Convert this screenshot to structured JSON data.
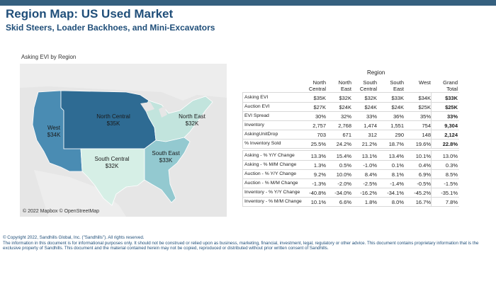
{
  "header": {
    "title": "Region Map: US Used Market",
    "subtitle": "Skid Steers, Loader Backhoes, and Mini-Excavators"
  },
  "map": {
    "title": "Asking EVI by Region",
    "credit": "© 2022 Mapbox © OpenStreetMap",
    "regions": [
      {
        "name": "West",
        "value": "$34K",
        "color": "#4a8cb3"
      },
      {
        "name": "North Central",
        "value": "$35K",
        "color": "#2e6b93"
      },
      {
        "name": "North East",
        "value": "$32K",
        "color": "#c2e4dd"
      },
      {
        "name": "South Central",
        "value": "$32K",
        "color": "#d6efe6"
      },
      {
        "name": "South East",
        "value": "$33K",
        "color": "#93c9d0"
      }
    ]
  },
  "table": {
    "region_header": "Region",
    "columns": [
      [
        "North",
        "Central"
      ],
      [
        "North",
        "East"
      ],
      [
        "South",
        "Central"
      ],
      [
        "South",
        "East"
      ],
      [
        "",
        "West"
      ],
      [
        "Grand",
        "Total"
      ]
    ],
    "rows_top": [
      {
        "label": "Asking EVI",
        "values": [
          "$35K",
          "$32K",
          "$32K",
          "$33K",
          "$34K",
          "$33K"
        ]
      },
      {
        "label": "Auction EVI",
        "values": [
          "$27K",
          "$24K",
          "$24K",
          "$24K",
          "$25K",
          "$25K"
        ]
      },
      {
        "label": "EVI Spread",
        "values": [
          "30%",
          "32%",
          "33%",
          "36%",
          "35%",
          "33%"
        ]
      },
      {
        "label": "Inventory",
        "values": [
          "2,757",
          "2,768",
          "1,474",
          "1,551",
          "754",
          "9,304"
        ]
      },
      {
        "label": "AskingUnitDrop",
        "values": [
          "703",
          "671",
          "312",
          "290",
          "148",
          "2,124"
        ]
      },
      {
        "label": "% Inventory Sold",
        "values": [
          "25.5%",
          "24.2%",
          "21.2%",
          "18.7%",
          "19.6%",
          "22.8%"
        ]
      }
    ],
    "rows_bottom": [
      {
        "label": "Asking - % Y/Y Change",
        "values": [
          "13.3%",
          "15.4%",
          "13.1%",
          "13.4%",
          "10.1%",
          "13.0%"
        ]
      },
      {
        "label": "Asking - % M/M Change",
        "values": [
          "1.3%",
          "0.5%",
          "-1.0%",
          "0.1%",
          "0.4%",
          "0.3%"
        ]
      },
      {
        "label": "Auction - % Y/Y Change",
        "values": [
          "9.2%",
          "10.0%",
          "8.4%",
          "8.1%",
          "6.9%",
          "8.5%"
        ]
      },
      {
        "label": "Auction - % M/M Change",
        "values": [
          "-1.3%",
          "-2.0%",
          "-2.5%",
          "-1.4%",
          "-0.5%",
          "-1.5%"
        ]
      },
      {
        "label": "Inventory - % Y/Y Change",
        "values": [
          "-40.8%",
          "-34.0%",
          "-16.2%",
          "-34.1%",
          "-45.2%",
          "-35.1%"
        ]
      },
      {
        "label": "Inventory - % M/M Change",
        "values": [
          "10.1%",
          "6.6%",
          "1.8%",
          "8.0%",
          "16.7%",
          "7.8%"
        ]
      }
    ]
  },
  "footer": {
    "copyright": "© Copyright 2022, Sandhills Global, Inc. (\"Sandhills\"). All rights reserved.",
    "disclaimer": "The information in this document is for informational purposes only.  It should not be construed or relied upon as business, marketing, financial, investment, legal, regulatory or other advice. This document contains proprietary information that is the exclusive property of Sandhills. This document and the material contained herein may not be copied, reproduced or distributed without prior written consent of Sandhills."
  }
}
